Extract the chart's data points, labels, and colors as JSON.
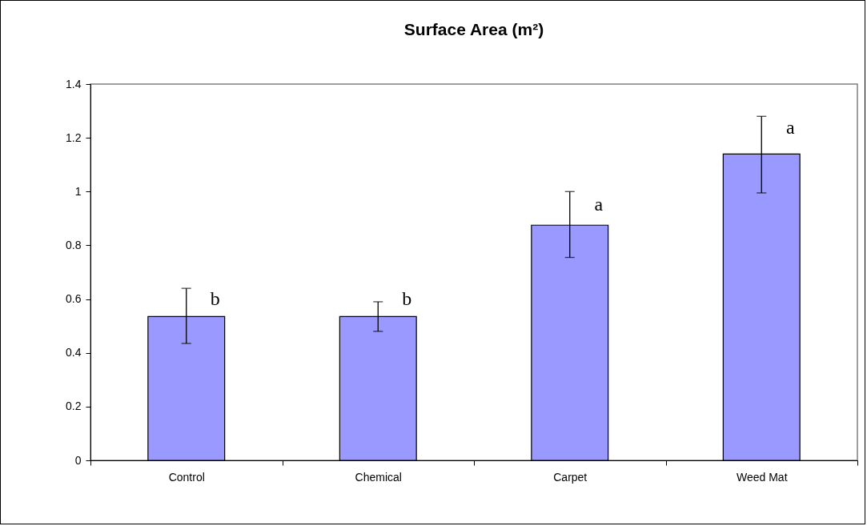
{
  "chart_data": {
    "type": "bar",
    "title": "Surface Area (m²)",
    "categories": [
      "Control",
      "Chemical",
      "Carpet",
      "Weed Mat"
    ],
    "values": [
      0.535,
      0.535,
      0.875,
      1.14
    ],
    "errors": [
      [
        0.435,
        0.64
      ],
      [
        0.48,
        0.59
      ],
      [
        0.755,
        1.0
      ],
      [
        0.995,
        1.28
      ]
    ],
    "color": "#9999ff",
    "ylim": [
      0,
      1.4
    ],
    "yticks": [
      0,
      0.2,
      0.4,
      0.6,
      0.8,
      1,
      1.2,
      1.4
    ],
    "annotations": [
      {
        "text": "b",
        "x": "Control",
        "y": 0.6
      },
      {
        "text": "b",
        "x": "Chemical",
        "y": 0.6
      },
      {
        "text": "a",
        "x": "Carpet",
        "y": 0.95
      },
      {
        "text": "a",
        "x": "Weed Mat",
        "y": 1.235
      }
    ]
  }
}
